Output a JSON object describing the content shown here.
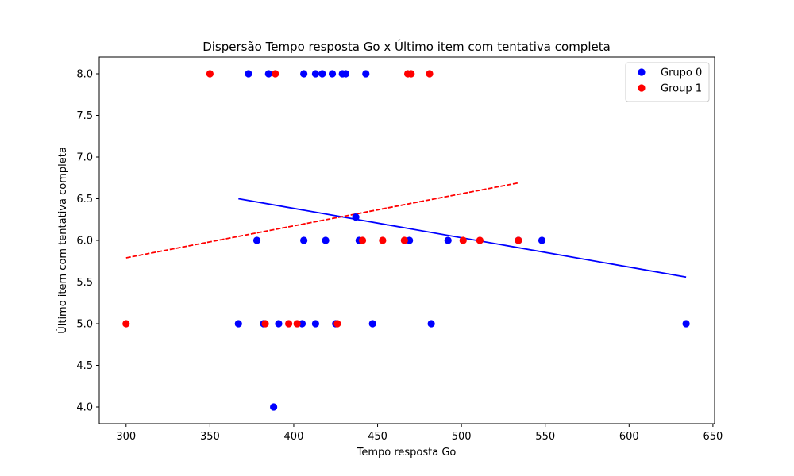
{
  "chart_data": {
    "type": "scatter",
    "title": "Dispersão Tempo resposta Go x Último item com tentativa completa",
    "xlabel": "Tempo resposta Go",
    "ylabel": "Último item com tentativa completa",
    "xlim": [
      284,
      651
    ],
    "ylim": [
      3.8,
      8.2
    ],
    "xticks": [
      "300",
      "350",
      "400",
      "450",
      "500",
      "550",
      "600",
      "650"
    ],
    "yticks": [
      "4.0",
      "4.5",
      "5.0",
      "5.5",
      "6.0",
      "6.5",
      "7.0",
      "7.5",
      "8.0"
    ],
    "grid": false,
    "legend_position": "top-right",
    "series": [
      {
        "name": "Grupo 0",
        "color": "#0000ff",
        "points": [
          {
            "x": 373,
            "y": 8.0
          },
          {
            "x": 385,
            "y": 8.0
          },
          {
            "x": 406,
            "y": 8.0
          },
          {
            "x": 413,
            "y": 8.0
          },
          {
            "x": 417,
            "y": 8.0
          },
          {
            "x": 423,
            "y": 8.0
          },
          {
            "x": 429,
            "y": 8.0
          },
          {
            "x": 431,
            "y": 8.0
          },
          {
            "x": 443,
            "y": 8.0
          },
          {
            "x": 437,
            "y": 6.28
          },
          {
            "x": 378,
            "y": 6.0
          },
          {
            "x": 406,
            "y": 6.0
          },
          {
            "x": 419,
            "y": 6.0
          },
          {
            "x": 439,
            "y": 6.0
          },
          {
            "x": 469,
            "y": 6.0
          },
          {
            "x": 492,
            "y": 6.0
          },
          {
            "x": 534,
            "y": 6.0
          },
          {
            "x": 548,
            "y": 6.0
          },
          {
            "x": 367,
            "y": 5.0
          },
          {
            "x": 382,
            "y": 5.0
          },
          {
            "x": 391,
            "y": 5.0
          },
          {
            "x": 405,
            "y": 5.0
          },
          {
            "x": 413,
            "y": 5.0
          },
          {
            "x": 425,
            "y": 5.0
          },
          {
            "x": 447,
            "y": 5.0
          },
          {
            "x": 482,
            "y": 5.0
          },
          {
            "x": 634,
            "y": 5.0
          },
          {
            "x": 388,
            "y": 4.0
          }
        ],
        "trend": {
          "x0": 367,
          "y0": 6.5,
          "x1": 634,
          "y1": 5.56,
          "style": "solid"
        }
      },
      {
        "name": "Group 1",
        "color": "#ff0000",
        "points": [
          {
            "x": 350,
            "y": 8.0
          },
          {
            "x": 389,
            "y": 8.0
          },
          {
            "x": 468,
            "y": 8.0
          },
          {
            "x": 470,
            "y": 8.0
          },
          {
            "x": 481,
            "y": 8.0
          },
          {
            "x": 441,
            "y": 6.0
          },
          {
            "x": 453,
            "y": 6.0
          },
          {
            "x": 466,
            "y": 6.0
          },
          {
            "x": 501,
            "y": 6.0
          },
          {
            "x": 511,
            "y": 6.0
          },
          {
            "x": 534,
            "y": 6.0
          },
          {
            "x": 300,
            "y": 5.0
          },
          {
            "x": 383,
            "y": 5.0
          },
          {
            "x": 397,
            "y": 5.0
          },
          {
            "x": 402,
            "y": 5.0
          },
          {
            "x": 426,
            "y": 5.0
          }
        ],
        "trend": {
          "x0": 300,
          "y0": 5.79,
          "x1": 534,
          "y1": 6.69,
          "style": "dashed"
        }
      }
    ]
  }
}
